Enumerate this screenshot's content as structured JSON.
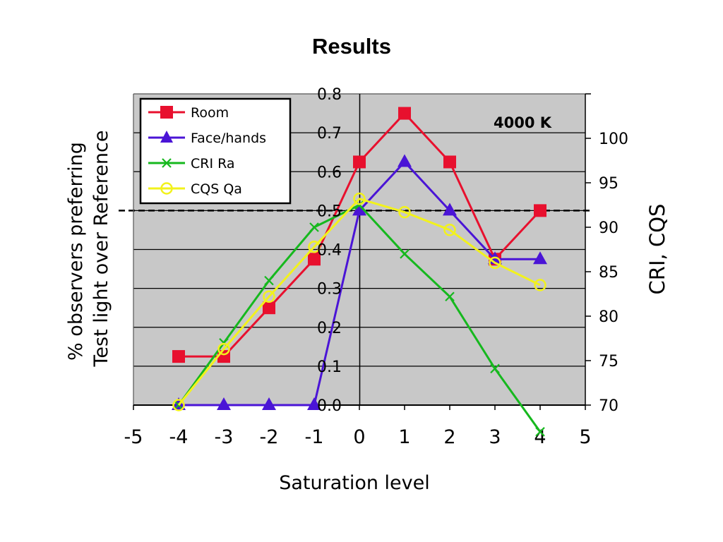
{
  "slide": {
    "title": "Results"
  },
  "chart_data": {
    "type": "line",
    "title": "Results",
    "xlabel": "Saturation level",
    "ylabel_left_line1": "% observers preferring",
    "ylabel_left_line2": "Test light over Reference",
    "ylabel_right": "CRI, CQS",
    "annotation": "4000 K",
    "x_ticks": [
      "-5",
      "-4",
      "-3",
      "-2",
      "-1",
      "0",
      "1",
      "2",
      "3",
      "4",
      "5"
    ],
    "y_left_ticks": [
      "0.0",
      "0.1",
      "0.2",
      "0.3",
      "0.4",
      "0.5",
      "0.6",
      "0.7",
      "0.8"
    ],
    "y_right_ticks": [
      "70",
      "75",
      "80",
      "85",
      "90",
      "95",
      "100"
    ],
    "xlim": [
      -5,
      5
    ],
    "ylim_left": [
      0,
      0.8
    ],
    "ylim_right": [
      70,
      105
    ],
    "reference_line": 0.5,
    "grid": true,
    "legend_position": "top-left",
    "colors": {
      "plot_bg": "#c8c8c8",
      "room": "#e8102e",
      "face": "#4a14d6",
      "cri": "#16b81e",
      "cqs": "#f2f21c"
    },
    "series": [
      {
        "name": "Room",
        "axis": "left",
        "marker": "square",
        "color": "#e8102e",
        "x": [
          -4,
          -3,
          -2,
          -1,
          0,
          1,
          2,
          3,
          4
        ],
        "y": [
          0.125,
          0.125,
          0.25,
          0.375,
          0.625,
          0.75,
          0.625,
          0.375,
          0.5
        ]
      },
      {
        "name": "Face/hands",
        "axis": "left",
        "marker": "triangle",
        "color": "#4a14d6",
        "x": [
          -4,
          -3,
          -2,
          -1,
          0,
          1,
          2,
          3,
          4
        ],
        "y": [
          0.0,
          0.0,
          0.0,
          0.0,
          0.5,
          0.625,
          0.5,
          0.375,
          0.375
        ]
      },
      {
        "name": "CRI Ra",
        "axis": "right",
        "marker": "x",
        "color": "#16b81e",
        "x": [
          -4,
          -3,
          -2,
          -1,
          0,
          1,
          2,
          3,
          4
        ],
        "y": [
          70.0,
          77.0,
          84.0,
          90.0,
          92.5,
          87.0,
          82.2,
          74.1,
          67.0
        ]
      },
      {
        "name": "CQS Qa",
        "axis": "right",
        "marker": "circle",
        "color": "#f2f21c",
        "x": [
          -4,
          -3,
          -2,
          -1,
          0,
          1,
          2,
          3,
          4
        ],
        "y": [
          70.0,
          76.3,
          82.2,
          87.8,
          93.2,
          91.7,
          89.7,
          86.0,
          83.5
        ]
      }
    ]
  }
}
